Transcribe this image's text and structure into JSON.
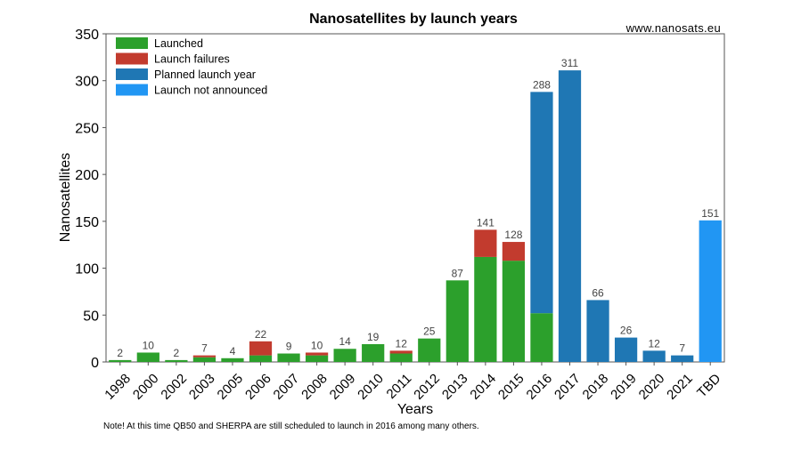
{
  "source_label": "www.nanosats.eu",
  "note": "Note! At this time QB50 and SHERPA are still scheduled to launch in 2016 among many others.",
  "colors": {
    "launched": "#2ca02c",
    "launch_failures": "#c23b2e",
    "planned": "#1f77b4",
    "not_announced": "#2196f3"
  },
  "chart_data": {
    "type": "bar",
    "stacked": true,
    "title": "Nanosatellites by launch years",
    "xlabel": "Years",
    "ylabel": "Nanosatellites",
    "ylim": [
      0,
      350
    ],
    "yticks": [
      0,
      50,
      100,
      150,
      200,
      250,
      300,
      350
    ],
    "legend_position": "top-left",
    "categories": [
      "1998",
      "2000",
      "2002",
      "2003",
      "2005",
      "2006",
      "2007",
      "2008",
      "2009",
      "2010",
      "2011",
      "2012",
      "2013",
      "2014",
      "2015",
      "2016",
      "2017",
      "2018",
      "2019",
      "2020",
      "2021",
      "TBD"
    ],
    "totals": [
      2,
      10,
      2,
      7,
      4,
      22,
      9,
      10,
      14,
      19,
      12,
      25,
      87,
      141,
      128,
      288,
      311,
      66,
      26,
      12,
      7,
      151
    ],
    "series": [
      {
        "name": "Launched",
        "color_key": "launched",
        "values": [
          2,
          10,
          2,
          5,
          4,
          7,
          9,
          7,
          14,
          19,
          9,
          25,
          87,
          112,
          108,
          52,
          0,
          0,
          0,
          0,
          0,
          0
        ]
      },
      {
        "name": "Launch failures",
        "color_key": "launch_failures",
        "values": [
          0,
          0,
          0,
          2,
          0,
          15,
          0,
          3,
          0,
          0,
          3,
          0,
          0,
          29,
          20,
          0,
          0,
          0,
          0,
          0,
          0,
          0
        ]
      },
      {
        "name": "Planned launch year",
        "color_key": "planned",
        "values": [
          0,
          0,
          0,
          0,
          0,
          0,
          0,
          0,
          0,
          0,
          0,
          0,
          0,
          0,
          0,
          236,
          311,
          66,
          26,
          12,
          7,
          0
        ]
      },
      {
        "name": "Launch not announced",
        "color_key": "not_announced",
        "values": [
          0,
          0,
          0,
          0,
          0,
          0,
          0,
          0,
          0,
          0,
          0,
          0,
          0,
          0,
          0,
          0,
          0,
          0,
          0,
          0,
          0,
          151
        ]
      }
    ]
  }
}
